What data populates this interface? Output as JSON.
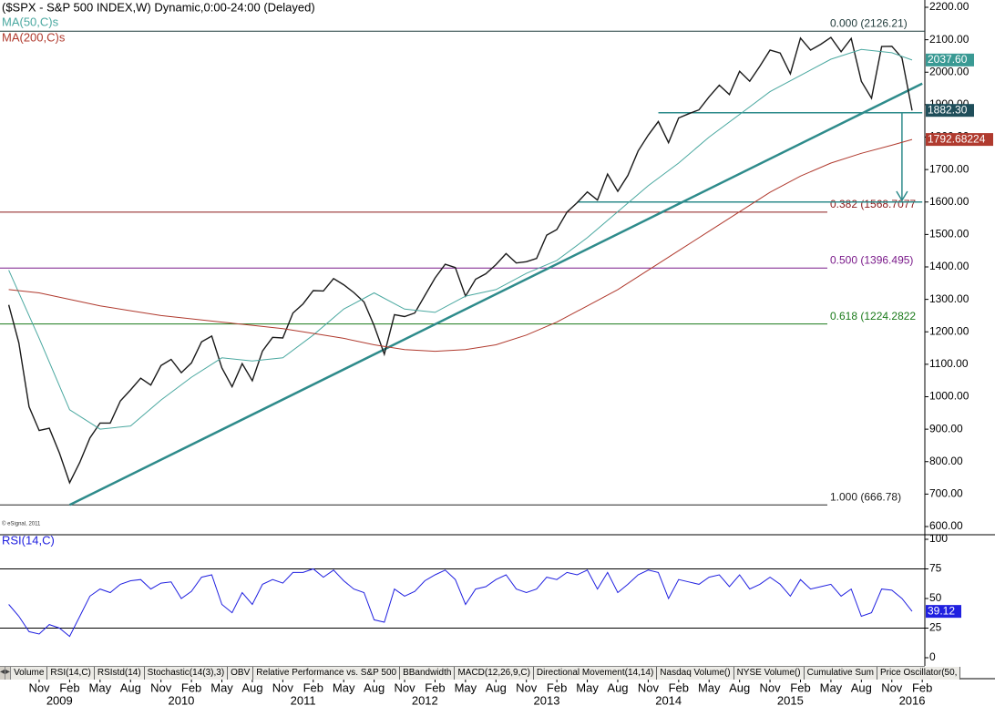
{
  "header": {
    "title": "($SPX - S&P 500 INDEX,W) Dynamic,0:00-24:00 (Delayed)",
    "copyright": "© eSignal, 2011"
  },
  "chart_data": [
    {
      "type": "line",
      "x": [
        "2008-08",
        "2008-09",
        "2008-10",
        "2008-11",
        "2008-12",
        "2009-01",
        "2009-02",
        "2009-03",
        "2009-04",
        "2009-05",
        "2009-06",
        "2009-07",
        "2009-08",
        "2009-09",
        "2009-10",
        "2009-11",
        "2009-12",
        "2010-01",
        "2010-02",
        "2010-03",
        "2010-04",
        "2010-05",
        "2010-06",
        "2010-07",
        "2010-08",
        "2010-09",
        "2010-10",
        "2010-11",
        "2010-12",
        "2011-01",
        "2011-02",
        "2011-03",
        "2011-04",
        "2011-05",
        "2011-06",
        "2011-07",
        "2011-08",
        "2011-09",
        "2011-10",
        "2011-11",
        "2011-12",
        "2012-01",
        "2012-02",
        "2012-03",
        "2012-04",
        "2012-05",
        "2012-06",
        "2012-07",
        "2012-08",
        "2012-09",
        "2012-10",
        "2012-11",
        "2012-12",
        "2013-01",
        "2013-02",
        "2013-03",
        "2013-04",
        "2013-05",
        "2013-06",
        "2013-07",
        "2013-08",
        "2013-09",
        "2013-10",
        "2013-11",
        "2013-12",
        "2014-01",
        "2014-02",
        "2014-03",
        "2014-04",
        "2014-05",
        "2014-06",
        "2014-07",
        "2014-08",
        "2014-09",
        "2014-10",
        "2014-11",
        "2014-12",
        "2015-01",
        "2015-02",
        "2015-03",
        "2015-04",
        "2015-05",
        "2015-06",
        "2015-07",
        "2015-08",
        "2015-09",
        "2015-10",
        "2015-11",
        "2015-12",
        "2016-01"
      ],
      "series": [
        {
          "color": "#1a1a1a",
          "values": [
            1283,
            1166,
            969,
            896,
            903,
            826,
            735,
            798,
            873,
            919,
            919,
            987,
            1021,
            1057,
            1036,
            1096,
            1115,
            1074,
            1104,
            1169,
            1187,
            1089,
            1031,
            1102,
            1049,
            1141,
            1183,
            1181,
            1258,
            1286,
            1327,
            1326,
            1364,
            1345,
            1321,
            1292,
            1219,
            1131,
            1253,
            1247,
            1258,
            1312,
            1366,
            1408,
            1398,
            1310,
            1362,
            1379,
            1407,
            1441,
            1412,
            1416,
            1426,
            1498,
            1515,
            1569,
            1598,
            1631,
            1606,
            1686,
            1633,
            1682,
            1757,
            1806,
            1848,
            1783,
            1859,
            1872,
            1884,
            1924,
            1960,
            1931,
            2003,
            1972,
            2018,
            2068,
            2059,
            1995,
            2105,
            2068,
            2086,
            2107,
            2063,
            2104,
            1972,
            1920,
            2079,
            2080,
            2044,
            1882.3
          ],
          "last_label": "1882.30",
          "label_color": "#1f4e5a"
        },
        {
          "name": "MA(50,C)s",
          "color": "#4aa8a0",
          "x": [
            "2008-08",
            "2008-11",
            "2009-02",
            "2009-05",
            "2009-08",
            "2009-11",
            "2010-02",
            "2010-05",
            "2010-08",
            "2010-11",
            "2011-02",
            "2011-05",
            "2011-08",
            "2011-11",
            "2012-02",
            "2012-05",
            "2012-08",
            "2012-11",
            "2013-02",
            "2013-05",
            "2013-08",
            "2013-11",
            "2014-02",
            "2014-05",
            "2014-08",
            "2014-11",
            "2015-02",
            "2015-05",
            "2015-08",
            "2015-11",
            "2016-01"
          ],
          "values": [
            1390,
            1180,
            960,
            900,
            910,
            990,
            1060,
            1120,
            1110,
            1120,
            1190,
            1270,
            1320,
            1270,
            1260,
            1310,
            1330,
            1380,
            1420,
            1490,
            1570,
            1650,
            1720,
            1800,
            1870,
            1940,
            1990,
            2040,
            2070,
            2060,
            2037.6
          ],
          "last_label": "2037.60",
          "label_color": "#3a9a94"
        },
        {
          "name": "MA(200,C)s",
          "color": "#b03a2e",
          "x": [
            "2008-08",
            "2008-11",
            "2009-02",
            "2009-05",
            "2009-08",
            "2009-11",
            "2010-02",
            "2010-05",
            "2010-08",
            "2010-11",
            "2011-02",
            "2011-05",
            "2011-08",
            "2011-11",
            "2012-02",
            "2012-05",
            "2012-08",
            "2012-11",
            "2013-02",
            "2013-05",
            "2013-08",
            "2013-11",
            "2014-02",
            "2014-05",
            "2014-08",
            "2014-11",
            "2015-02",
            "2015-05",
            "2015-08",
            "2015-11",
            "2016-01"
          ],
          "values": [
            1330,
            1320,
            1300,
            1280,
            1265,
            1250,
            1240,
            1230,
            1220,
            1210,
            1195,
            1180,
            1160,
            1145,
            1140,
            1145,
            1160,
            1190,
            1230,
            1280,
            1330,
            1390,
            1450,
            1510,
            1570,
            1630,
            1680,
            1720,
            1750,
            1775,
            1792.68224
          ],
          "last_label": "1792.68224",
          "label_color": "#b03a2e"
        }
      ],
      "fib": [
        {
          "label": "0.000 (2126.21)",
          "value": 2126.21,
          "color": "#1f3a3a"
        },
        {
          "label": "0.382 (1568.7077",
          "value": 1568.7077,
          "color": "#8b1a1a"
        },
        {
          "label": "0.500 (1396.495)",
          "value": 1396.495,
          "color": "#7a1a8a"
        },
        {
          "label": "0.618 (1224.2822",
          "value": 1224.2822,
          "color": "#1a7a1a"
        },
        {
          "label": "1.000 (666.78)",
          "value": 666.78,
          "color": "#222222"
        }
      ],
      "trend_color": "#2e8b8b",
      "trendlines": [
        {
          "x": [
            "2009-02",
            "2016-02"
          ],
          "values": [
            666.78,
            1965
          ]
        },
        {
          "x": [
            "2013-12",
            "2016-02"
          ],
          "values": [
            1875,
            1875
          ]
        },
        {
          "x": [
            "2013-04",
            "2016-02"
          ],
          "values": [
            1600,
            1600
          ]
        }
      ],
      "arrow": {
        "x": "2015-12",
        "values": [
          1875,
          1605
        ]
      },
      "ylim": [
        600,
        2200
      ],
      "yticks": [
        {
          "value": 2200,
          "label": "2200.00"
        },
        {
          "value": 2100,
          "label": "2100.00"
        },
        {
          "value": 2000,
          "label": "2000.00"
        },
        {
          "value": 1900,
          "label": "1900.00"
        },
        {
          "value": 1800,
          "label": "1800.00"
        },
        {
          "value": 1700,
          "label": "1700.00"
        },
        {
          "value": 1600,
          "label": "1600.00"
        },
        {
          "value": 1500,
          "label": "1500.00"
        },
        {
          "value": 1400,
          "label": "1400.00"
        },
        {
          "value": 1300,
          "label": "1300.00"
        },
        {
          "value": 1200,
          "label": "1200.00"
        },
        {
          "value": 1100,
          "label": "1100.00"
        },
        {
          "value": 1000,
          "label": "1000.00"
        },
        {
          "value": 900,
          "label": "900.00"
        },
        {
          "value": 800,
          "label": "800.00"
        },
        {
          "value": 700,
          "label": "700.00"
        },
        {
          "value": 600,
          "label": "600.00"
        }
      ]
    },
    {
      "type": "line",
      "title": "RSI(14,C)",
      "series": [
        {
          "color": "#2020e0",
          "values": [
            45,
            35,
            22,
            20,
            28,
            25,
            18,
            35,
            52,
            58,
            55,
            62,
            65,
            66,
            58,
            63,
            64,
            50,
            56,
            68,
            70,
            45,
            38,
            55,
            45,
            62,
            66,
            63,
            72,
            72,
            75,
            68,
            74,
            65,
            58,
            55,
            32,
            30,
            58,
            52,
            56,
            65,
            70,
            74,
            66,
            45,
            58,
            60,
            66,
            70,
            58,
            55,
            58,
            68,
            66,
            72,
            70,
            74,
            58,
            72,
            55,
            62,
            70,
            74,
            72,
            50,
            66,
            64,
            62,
            68,
            70,
            60,
            70,
            58,
            62,
            68,
            62,
            52,
            66,
            58,
            60,
            62,
            52,
            58,
            35,
            38,
            58,
            57,
            50,
            39.12
          ],
          "last_label": "39.12",
          "label_color": "#2020e0"
        }
      ],
      "ylim": [
        0,
        100
      ],
      "yticks": [
        100,
        75,
        50,
        25,
        0
      ],
      "levels": [
        75,
        25
      ]
    }
  ],
  "xticks": [
    {
      "value": "2008-11",
      "label": "Nov"
    },
    {
      "value": "2009-02",
      "label": "Feb"
    },
    {
      "value": "2009-05",
      "label": "May"
    },
    {
      "value": "2009-08",
      "label": "Aug"
    },
    {
      "value": "2009-11",
      "label": "Nov"
    },
    {
      "value": "2010-02",
      "label": "Feb"
    },
    {
      "value": "2010-05",
      "label": "May"
    },
    {
      "value": "2010-08",
      "label": "Aug"
    },
    {
      "value": "2010-11",
      "label": "Nov"
    },
    {
      "value": "2011-02",
      "label": "Feb"
    },
    {
      "value": "2011-05",
      "label": "May"
    },
    {
      "value": "2011-08",
      "label": "Aug"
    },
    {
      "value": "2011-11",
      "label": "Nov"
    },
    {
      "value": "2012-02",
      "label": "Feb"
    },
    {
      "value": "2012-05",
      "label": "May"
    },
    {
      "value": "2012-08",
      "label": "Aug"
    },
    {
      "value": "2012-11",
      "label": "Nov"
    },
    {
      "value": "2013-02",
      "label": "Feb"
    },
    {
      "value": "2013-05",
      "label": "May"
    },
    {
      "value": "2013-08",
      "label": "Aug"
    },
    {
      "value": "2013-11",
      "label": "Nov"
    },
    {
      "value": "2014-02",
      "label": "Feb"
    },
    {
      "value": "2014-05",
      "label": "May"
    },
    {
      "value": "2014-08",
      "label": "Aug"
    },
    {
      "value": "2014-11",
      "label": "Nov"
    },
    {
      "value": "2015-02",
      "label": "Feb"
    },
    {
      "value": "2015-05",
      "label": "May"
    },
    {
      "value": "2015-08",
      "label": "Aug"
    },
    {
      "value": "2015-11",
      "label": "Nov"
    },
    {
      "value": "2016-02",
      "label": "Feb"
    }
  ],
  "year_ticks": [
    {
      "value": "2009-01",
      "label": "2009"
    },
    {
      "value": "2010-01",
      "label": "2010"
    },
    {
      "value": "2011-01",
      "label": "2011"
    },
    {
      "value": "2012-01",
      "label": "2012"
    },
    {
      "value": "2013-01",
      "label": "2013"
    },
    {
      "value": "2014-01",
      "label": "2014"
    },
    {
      "value": "2015-01",
      "label": "2015"
    },
    {
      "value": "2016-01",
      "label": "2016"
    }
  ],
  "tabs": [
    "Volume",
    "RSI(14,C)",
    "RSIstd(14)",
    "Stochastic(14(3),3)",
    "OBV",
    "Relative Performance vs. S&P 500",
    "BBandwidth",
    "MACD(12,26,9,C)",
    "Directional Movement(14,14)",
    "Nasdaq Volume()",
    "NYSE Volume()",
    "Cumulative Sum",
    "Price Oscillator(50,"
  ]
}
